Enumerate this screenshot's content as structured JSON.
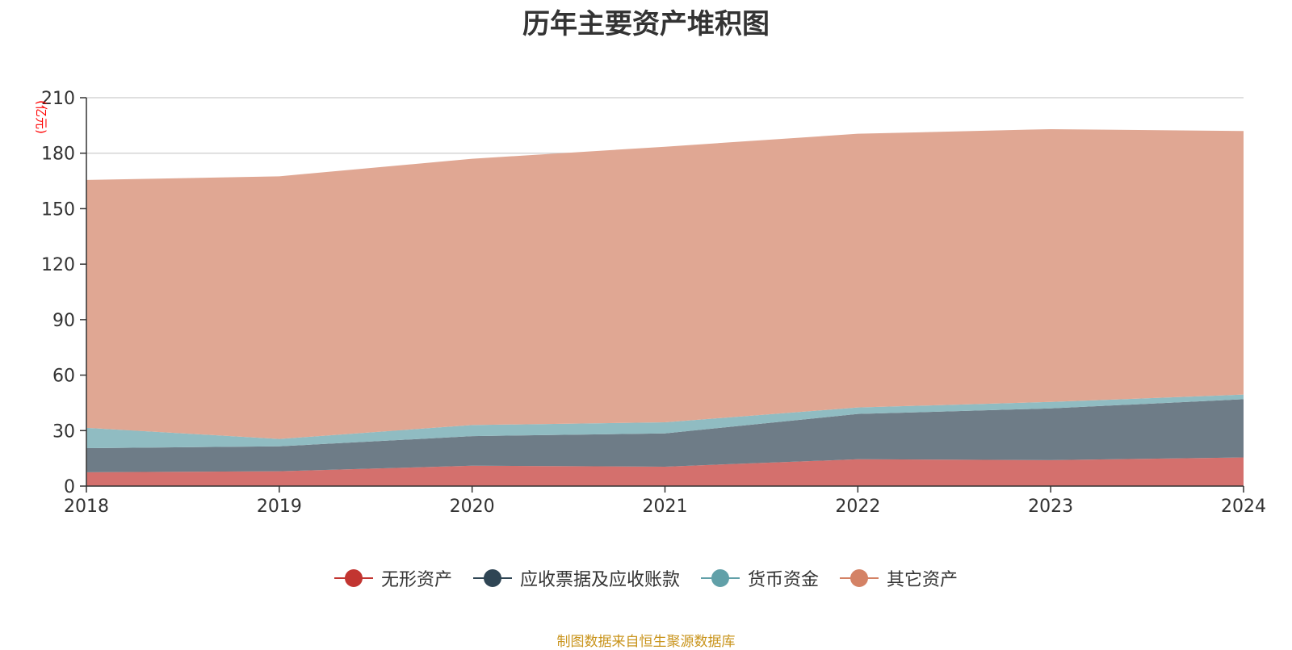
{
  "chart_data": {
    "type": "area",
    "stacked": true,
    "title": "历年主要资产堆积图",
    "unit_label": "(亿元)",
    "x": [
      "2018",
      "2019",
      "2020",
      "2021",
      "2022",
      "2023",
      "2024"
    ],
    "ylim": [
      0,
      210
    ],
    "yticks": [
      0,
      30,
      60,
      90,
      120,
      150,
      180,
      210
    ],
    "grid": true,
    "legend_position": "bottom",
    "series": [
      {
        "name": "无形资产",
        "color": "#c23531",
        "fill": "#d4706d",
        "values": [
          7.5,
          8,
          11,
          10.5,
          14.5,
          14,
          15.5
        ]
      },
      {
        "name": "应收票据及应收账款",
        "color": "#2f4554",
        "fill": "#6e7c87",
        "values": [
          13,
          13.5,
          16,
          18,
          24.5,
          28,
          31.5
        ]
      },
      {
        "name": "货币资金",
        "color": "#61a0a8",
        "fill": "#90bcc2",
        "values": [
          11,
          4,
          6,
          6,
          3.5,
          3.5,
          2.5
        ]
      },
      {
        "name": "其它资产",
        "color": "#d48265",
        "fill": "#e0a793",
        "values": [
          134,
          142,
          144,
          149,
          148,
          147.5,
          142.5
        ]
      }
    ]
  },
  "source_note": {
    "text": "制图数据来自恒生聚源数据库",
    "color": "#c9941c"
  }
}
